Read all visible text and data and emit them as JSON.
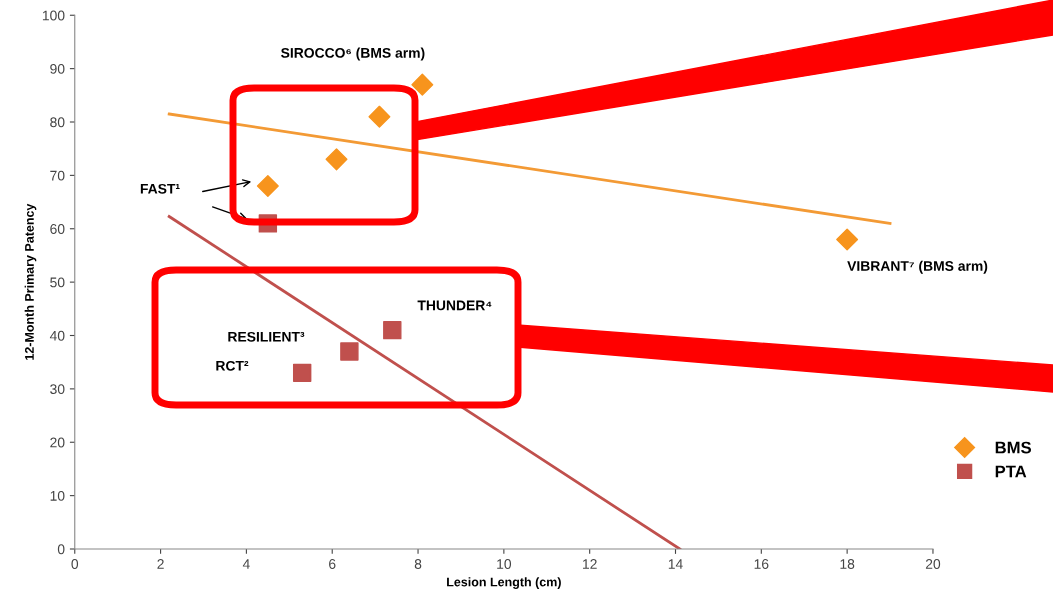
{
  "chart_data": {
    "type": "scatter",
    "xlabel": "Lesion Length (cm)",
    "ylabel": "12-Month Primary Patency",
    "xlim": [
      0,
      20
    ],
    "xticks": [
      0,
      2,
      4,
      6,
      8,
      10,
      12,
      14,
      16,
      18,
      20
    ],
    "ylim": [
      0,
      100
    ],
    "yticks": [
      0,
      10,
      20,
      30,
      40,
      50,
      60,
      70,
      80,
      90,
      100
    ],
    "grid": false,
    "legend": "right",
    "series": [
      {
        "name": "BMS",
        "color": "#f7941d",
        "marker": "diamond",
        "x": [
          4.5,
          6.1,
          7.1,
          8.1,
          18
        ],
        "values": [
          68,
          73,
          81,
          87,
          58
        ]
      },
      {
        "name": "PTA",
        "color": "#c0504d",
        "marker": "square",
        "x": [
          4.5,
          5.3,
          6.4,
          7.4
        ],
        "values": [
          61,
          33,
          37,
          41
        ]
      },
      {
        "type": "line",
        "color": "#f39a35",
        "x": [
          2.2,
          19
        ],
        "values": [
          81.5,
          61
        ]
      },
      {
        "type": "line",
        "color": "#c0504d",
        "x": [
          2.2,
          14.1
        ],
        "values": [
          62.3,
          0
        ]
      }
    ],
    "annotations": [
      {
        "text": "SIROCCO⁶ (BMS arm)",
        "x": 8.1,
        "y": 87
      },
      {
        "text": "VIBRANT⁷ (BMS arm)",
        "x": 18,
        "y": 58
      },
      "FAST¹",
      "RCT²",
      "RESILIENT³",
      {
        "text": "THUNDER⁴",
        "x": 7.4,
        "y": 41
      }
    ]
  }
}
